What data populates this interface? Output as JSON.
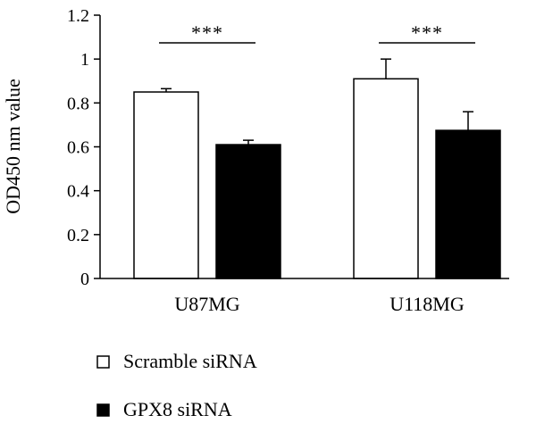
{
  "chart_data": {
    "type": "bar",
    "ylabel": "OD450 nm value",
    "ylim": [
      0,
      1.2
    ],
    "yticks": [
      "0",
      "0.2",
      "0.4",
      "0.6",
      "0.8",
      "1",
      "1.2"
    ],
    "categories": [
      "U87MG",
      "U118MG"
    ],
    "series": [
      {
        "name": "Scramble siRNA",
        "values": [
          0.85,
          0.91
        ],
        "errors": [
          0.015,
          0.09
        ],
        "color": "#ffffff"
      },
      {
        "name": "GPX8 siRNA",
        "values": [
          0.61,
          0.675
        ],
        "errors": [
          0.02,
          0.085
        ],
        "color": "#000000"
      }
    ],
    "annotations": [
      "***",
      "***"
    ],
    "legend": "bottom-left",
    "grid": false
  }
}
